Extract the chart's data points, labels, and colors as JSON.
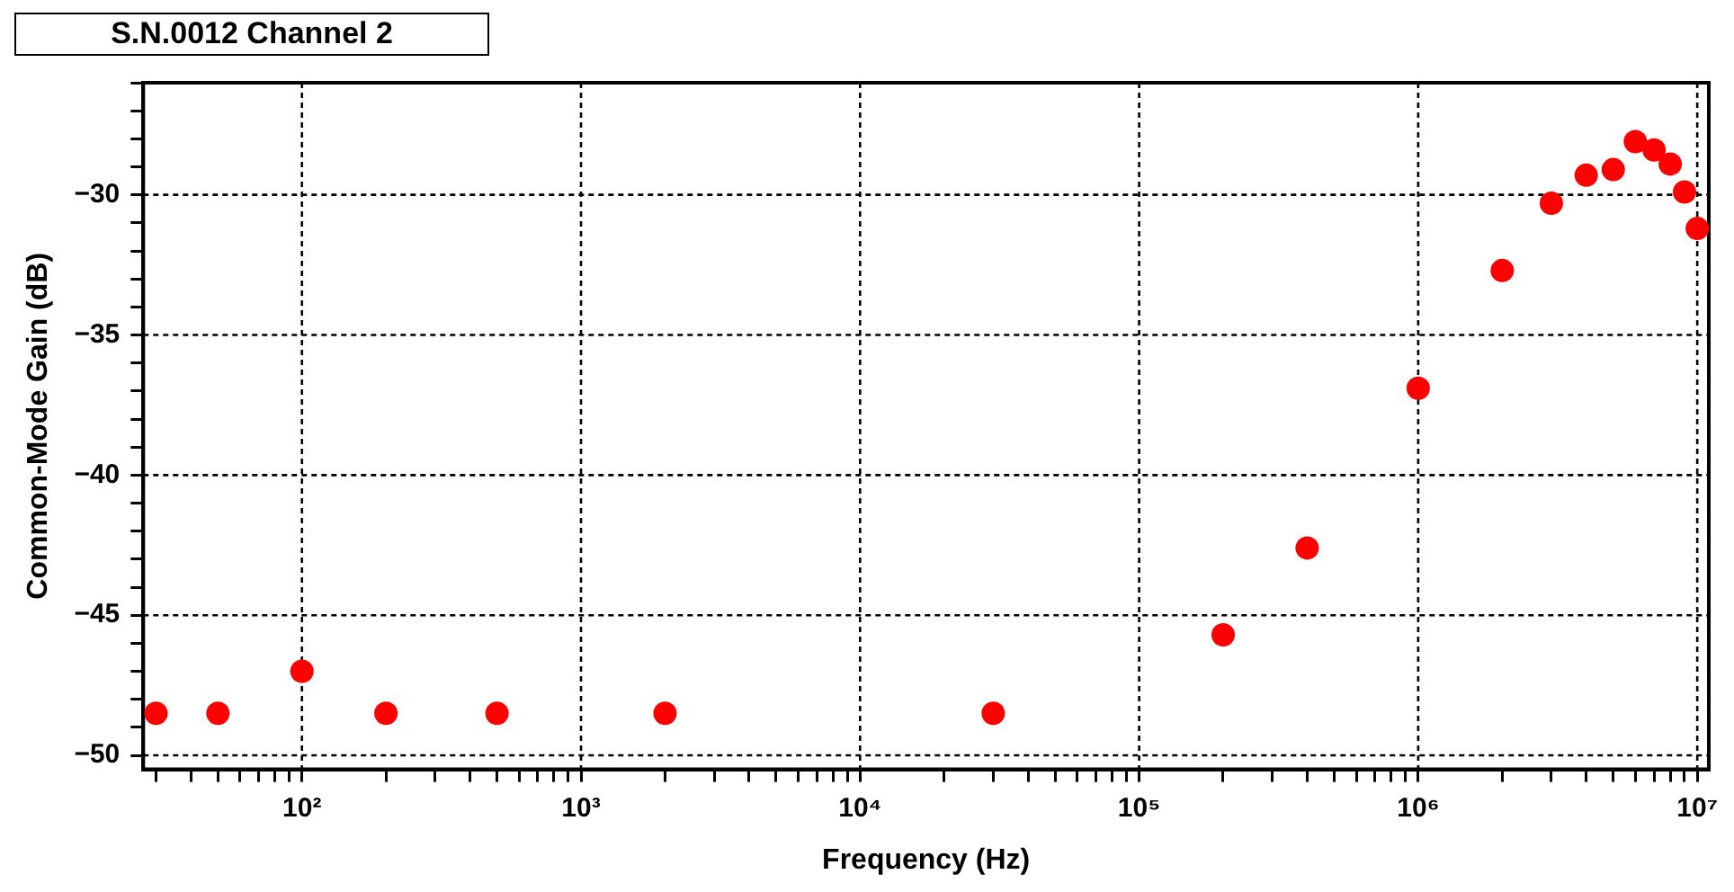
{
  "chart_data": {
    "type": "scatter",
    "title": "S.N.0012 Channel 2",
    "xlabel": "Frequency (Hz)",
    "ylabel": "Common-Mode Gain (dB)",
    "log": "x",
    "grid": true,
    "legend": false,
    "marker": "circle",
    "xlim": [
      27,
      11000000
    ],
    "ylim": [
      -50.5,
      -26
    ],
    "xticks": [
      {
        "value": 30,
        "label": null
      },
      {
        "value": 40,
        "label": null
      },
      {
        "value": 50,
        "label": null
      },
      {
        "value": 60,
        "label": null
      },
      {
        "value": 70,
        "label": null
      },
      {
        "value": 80,
        "label": null
      },
      {
        "value": 90,
        "label": null
      },
      {
        "value": 100,
        "label": "10²"
      },
      {
        "value": 200,
        "label": null
      },
      {
        "value": 300,
        "label": null
      },
      {
        "value": 400,
        "label": null
      },
      {
        "value": 500,
        "label": null
      },
      {
        "value": 600,
        "label": null
      },
      {
        "value": 700,
        "label": null
      },
      {
        "value": 800,
        "label": null
      },
      {
        "value": 900,
        "label": null
      },
      {
        "value": 1000,
        "label": "10³"
      },
      {
        "value": 2000,
        "label": null
      },
      {
        "value": 3000,
        "label": null
      },
      {
        "value": 4000,
        "label": null
      },
      {
        "value": 5000,
        "label": null
      },
      {
        "value": 6000,
        "label": null
      },
      {
        "value": 7000,
        "label": null
      },
      {
        "value": 8000,
        "label": null
      },
      {
        "value": 9000,
        "label": null
      },
      {
        "value": 10000,
        "label": "10⁴"
      },
      {
        "value": 20000,
        "label": null
      },
      {
        "value": 30000,
        "label": null
      },
      {
        "value": 40000,
        "label": null
      },
      {
        "value": 50000,
        "label": null
      },
      {
        "value": 60000,
        "label": null
      },
      {
        "value": 70000,
        "label": null
      },
      {
        "value": 80000,
        "label": null
      },
      {
        "value": 90000,
        "label": null
      },
      {
        "value": 100000,
        "label": "10⁵"
      },
      {
        "value": 200000,
        "label": null
      },
      {
        "value": 300000,
        "label": null
      },
      {
        "value": 400000,
        "label": null
      },
      {
        "value": 500000,
        "label": null
      },
      {
        "value": 600000,
        "label": null
      },
      {
        "value": 700000,
        "label": null
      },
      {
        "value": 800000,
        "label": null
      },
      {
        "value": 900000,
        "label": null
      },
      {
        "value": 1000000,
        "label": "10⁶"
      },
      {
        "value": 2000000,
        "label": null
      },
      {
        "value": 3000000,
        "label": null
      },
      {
        "value": 4000000,
        "label": null
      },
      {
        "value": 5000000,
        "label": null
      },
      {
        "value": 6000000,
        "label": null
      },
      {
        "value": 7000000,
        "label": null
      },
      {
        "value": 8000000,
        "label": null
      },
      {
        "value": 9000000,
        "label": null
      },
      {
        "value": 10000000,
        "label": "10⁷"
      }
    ],
    "yticks": [
      -50,
      {
        "value": -49,
        "label": null
      },
      {
        "value": -48,
        "label": null
      },
      {
        "value": -47,
        "label": null
      },
      {
        "value": -46,
        "label": null
      },
      -45,
      {
        "value": -44,
        "label": null
      },
      {
        "value": -43,
        "label": null
      },
      {
        "value": -42,
        "label": null
      },
      {
        "value": -41,
        "label": null
      },
      -40,
      {
        "value": -39,
        "label": null
      },
      {
        "value": -38,
        "label": null
      },
      {
        "value": -37,
        "label": null
      },
      {
        "value": -36,
        "label": null
      },
      -35,
      {
        "value": -34,
        "label": null
      },
      {
        "value": -33,
        "label": null
      },
      {
        "value": -32,
        "label": null
      },
      {
        "value": -31,
        "label": null
      },
      -30,
      {
        "value": -29,
        "label": null
      },
      {
        "value": -28,
        "label": null
      },
      {
        "value": -27,
        "label": null
      },
      {
        "value": -26,
        "label": null
      }
    ],
    "series": [
      {
        "color": "#ff0000",
        "x": [
          30,
          50,
          100,
          200,
          500,
          2000,
          30000,
          200000,
          400000,
          1000000,
          2000000,
          3000000,
          4000000,
          5000000,
          6000000,
          7000000,
          8000000,
          9000000,
          10000000
        ],
        "values": [
          -48.5,
          -48.5,
          -47,
          -48.5,
          -48.5,
          -48.5,
          -48.5,
          -45.7,
          -42.6,
          -36.9,
          -32.7,
          -30.3,
          -29.3,
          -29.1,
          -28.1,
          -28.4,
          -28.9,
          -29.9,
          -31.2
        ]
      }
    ]
  }
}
